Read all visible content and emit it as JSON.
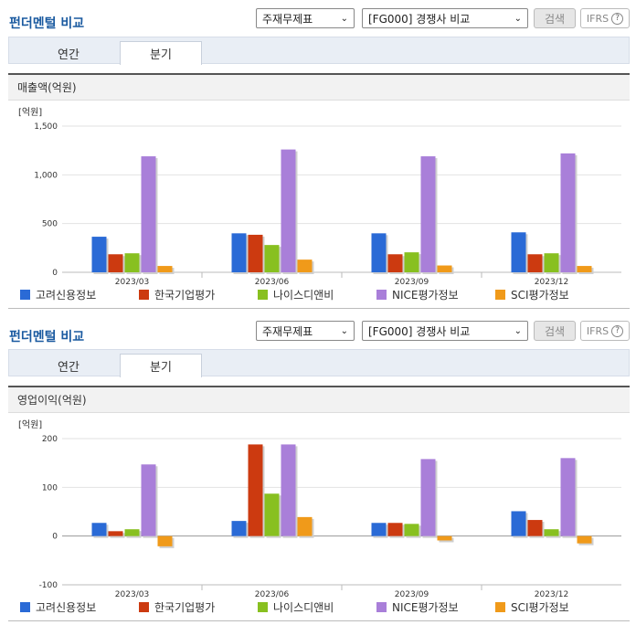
{
  "panels": [
    {
      "title": "펀더멘털 비교",
      "select_subject": "주재무제표",
      "select_group": "[FG000] 경쟁사 비교",
      "search_label": "검색",
      "ifrs_label": "IFRS",
      "tabs": [
        {
          "label": "연간"
        },
        {
          "label": "분기"
        }
      ],
      "active_tab": "분기",
      "chart_title": "매출액(억원)",
      "unit_label": "[억원]"
    },
    {
      "title": "펀더멘털 비교",
      "select_subject": "주재무제표",
      "select_group": "[FG000] 경쟁사 비교",
      "search_label": "검색",
      "ifrs_label": "IFRS",
      "tabs": [
        {
          "label": "연간"
        },
        {
          "label": "분기"
        }
      ],
      "active_tab": "분기",
      "chart_title": "영업이익(억원)",
      "unit_label": "[억원]"
    }
  ],
  "colors": [
    "#2a6ad6",
    "#cc3a10",
    "#88c020",
    "#a97fd9",
    "#f09a1a"
  ],
  "chart_data": [
    {
      "type": "bar",
      "title": "매출액(억원)",
      "ylabel": "[억원]",
      "categories": [
        "2023/03",
        "2023/06",
        "2023/09",
        "2023/12"
      ],
      "ylim": [
        0,
        1500
      ],
      "yticks": [
        0,
        500,
        1000,
        1500
      ],
      "ytick_labels": [
        "0",
        "500",
        "1,000",
        "1,500"
      ],
      "series": [
        {
          "name": "고려신용정보",
          "values": [
            365,
            400,
            400,
            410
          ]
        },
        {
          "name": "한국기업평가",
          "values": [
            185,
            385,
            185,
            185
          ]
        },
        {
          "name": "나이스디앤비",
          "values": [
            195,
            280,
            205,
            195
          ]
        },
        {
          "name": "NICE평가정보",
          "values": [
            1190,
            1260,
            1190,
            1220
          ]
        },
        {
          "name": "SCI평가정보",
          "values": [
            65,
            130,
            70,
            65
          ]
        }
      ],
      "legend": "bottom"
    },
    {
      "type": "bar",
      "title": "영업이익(억원)",
      "ylabel": "[억원]",
      "categories": [
        "2023/03",
        "2023/06",
        "2023/09",
        "2023/12"
      ],
      "ylim": [
        -100,
        200
      ],
      "yticks": [
        -100,
        0,
        100,
        200
      ],
      "ytick_labels": [
        "-100",
        "0",
        "100",
        "200"
      ],
      "series": [
        {
          "name": "고려신용정보",
          "values": [
            27,
            31,
            27,
            51
          ]
        },
        {
          "name": "한국기업평가",
          "values": [
            10,
            188,
            27,
            33
          ]
        },
        {
          "name": "나이스디앤비",
          "values": [
            14,
            87,
            25,
            14
          ]
        },
        {
          "name": "NICE평가정보",
          "values": [
            147,
            188,
            158,
            160
          ]
        },
        {
          "name": "SCI평가정보",
          "values": [
            -21,
            39,
            -9,
            -15
          ]
        }
      ],
      "legend": "bottom"
    }
  ]
}
